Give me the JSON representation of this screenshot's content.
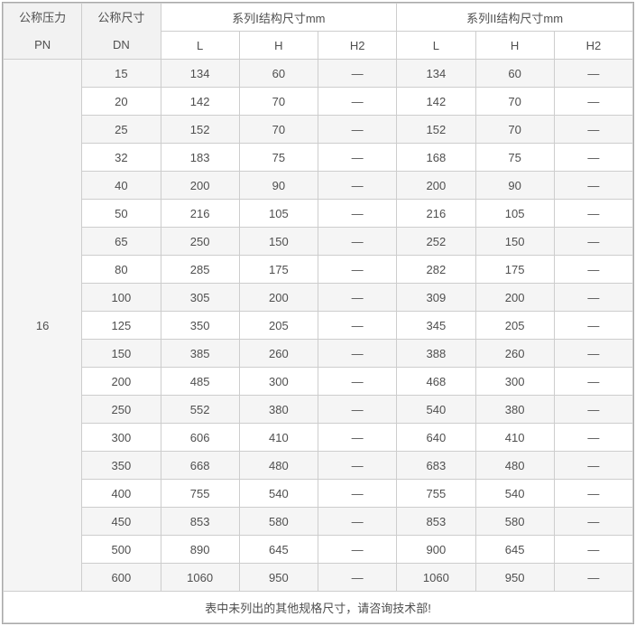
{
  "colors": {
    "header_bg": "#f2f2f2",
    "stripe_bg": "#f5f5f5",
    "border_inner": "#cdcdcd",
    "border_outer": "#a9a9a9",
    "text": "#4f4f4f"
  },
  "table": {
    "header": {
      "pressure_label": "公称压力",
      "pressure_unit": "PN",
      "size_label": "公称尺寸",
      "size_unit": "DN",
      "series1_label": "系列I结构尺寸mm",
      "series2_label": "系列II结构尺寸mm",
      "sub_columns": [
        "L",
        "H",
        "H2"
      ]
    },
    "pn_value": "16",
    "rows": [
      {
        "dn": "15",
        "cells": [
          "134",
          "60",
          "—",
          "134",
          "60",
          "—"
        ]
      },
      {
        "dn": "20",
        "cells": [
          "142",
          "70",
          "—",
          "142",
          "70",
          "—"
        ]
      },
      {
        "dn": "25",
        "cells": [
          "152",
          "70",
          "—",
          "152",
          "70",
          "—"
        ]
      },
      {
        "dn": "32",
        "cells": [
          "183",
          "75",
          "—",
          "168",
          "75",
          "—"
        ]
      },
      {
        "dn": "40",
        "cells": [
          "200",
          "90",
          "—",
          "200",
          "90",
          "—"
        ]
      },
      {
        "dn": "50",
        "cells": [
          "216",
          "105",
          "—",
          "216",
          "105",
          "—"
        ]
      },
      {
        "dn": "65",
        "cells": [
          "250",
          "150",
          "—",
          "252",
          "150",
          "—"
        ]
      },
      {
        "dn": "80",
        "cells": [
          "285",
          "175",
          "—",
          "282",
          "175",
          "—"
        ]
      },
      {
        "dn": "100",
        "cells": [
          "305",
          "200",
          "—",
          "309",
          "200",
          "—"
        ]
      },
      {
        "dn": "125",
        "cells": [
          "350",
          "205",
          "—",
          "345",
          "205",
          "—"
        ]
      },
      {
        "dn": "150",
        "cells": [
          "385",
          "260",
          "—",
          "388",
          "260",
          "—"
        ]
      },
      {
        "dn": "200",
        "cells": [
          "485",
          "300",
          "—",
          "468",
          "300",
          "—"
        ]
      },
      {
        "dn": "250",
        "cells": [
          "552",
          "380",
          "—",
          "540",
          "380",
          "—"
        ]
      },
      {
        "dn": "300",
        "cells": [
          "606",
          "410",
          "—",
          "640",
          "410",
          "—"
        ]
      },
      {
        "dn": "350",
        "cells": [
          "668",
          "480",
          "—",
          "683",
          "480",
          "—"
        ]
      },
      {
        "dn": "400",
        "cells": [
          "755",
          "540",
          "—",
          "755",
          "540",
          "—"
        ]
      },
      {
        "dn": "450",
        "cells": [
          "853",
          "580",
          "—",
          "853",
          "580",
          "—"
        ]
      },
      {
        "dn": "500",
        "cells": [
          "890",
          "645",
          "—",
          "900",
          "645",
          "—"
        ]
      },
      {
        "dn": "600",
        "cells": [
          "1060",
          "950",
          "—",
          "1060",
          "950",
          "—"
        ]
      }
    ],
    "note": "表中未列出的其他规格尺寸，请咨询技术部!"
  }
}
